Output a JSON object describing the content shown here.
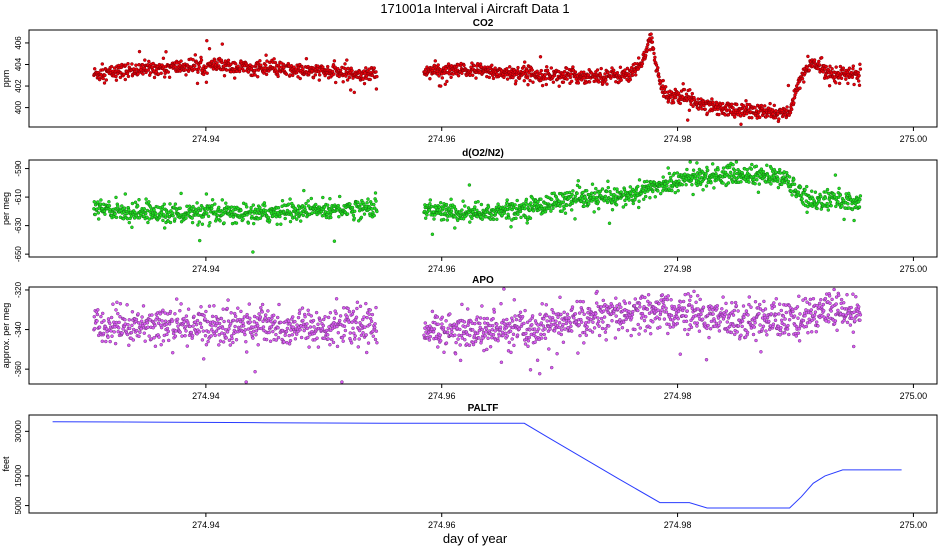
{
  "page": {
    "title": "171001a   Interval i Aircraft Data 1",
    "xlabel": "day of year"
  },
  "chart_data": [
    {
      "type": "scatter",
      "title": "CO2",
      "ylabel": "ppm",
      "color": "#e8000b",
      "xlim": [
        274.925,
        275.002
      ],
      "ylim": [
        398.2,
        407.2
      ],
      "xticks": [
        274.94,
        274.96,
        274.98,
        275.0
      ],
      "xtick_labels": [
        "274.94",
        "274.96",
        "274.98",
        "275.00"
      ],
      "yticks": [
        400,
        402,
        404,
        406
      ],
      "ytick_labels": [
        "400",
        "402",
        "404",
        "406"
      ],
      "segments": [
        {
          "x": [
            274.9305,
            274.935,
            274.94,
            274.945,
            274.95,
            274.9545
          ],
          "y": [
            403.1,
            403.6,
            403.9,
            403.6,
            403.3,
            403.1
          ],
          "noise": 0.35,
          "n": 640
        },
        {
          "x": [
            274.9585,
            274.963,
            274.968,
            274.972,
            274.9755,
            274.977,
            274.9777,
            274.9784,
            274.979,
            274.981,
            274.984,
            274.987,
            274.9895,
            274.99,
            274.9905,
            274.9915,
            274.993,
            274.9955
          ],
          "y": [
            403.4,
            403.4,
            403.1,
            402.9,
            403.0,
            404.0,
            406.8,
            402.5,
            401.3,
            400.8,
            399.9,
            399.6,
            399.4,
            401.5,
            402.8,
            404.2,
            403.2,
            403.0
          ],
          "noise": 0.35,
          "n": 1050
        }
      ]
    },
    {
      "type": "scatter",
      "title": "d(O2/N2)",
      "ylabel": "per meg",
      "color": "#22dd22",
      "xlim": [
        274.925,
        275.002
      ],
      "ylim": [
        -652,
        -584
      ],
      "xticks": [
        274.94,
        274.96,
        274.98,
        275.0
      ],
      "xtick_labels": [
        "274.94",
        "274.96",
        "274.98",
        "275.00"
      ],
      "yticks": [
        -650,
        -630,
        -610,
        -590
      ],
      "ytick_labels": [
        "-650",
        "-630",
        "-610",
        "-590"
      ],
      "segments": [
        {
          "x": [
            274.9305,
            274.935,
            274.94,
            274.945,
            274.95,
            274.9545
          ],
          "y": [
            -618,
            -621,
            -622,
            -621,
            -619,
            -617
          ],
          "noise": 3.5,
          "n": 640
        },
        {
          "x": [
            274.9585,
            274.963,
            274.967,
            274.97,
            274.973,
            274.976,
            274.978,
            274.981,
            274.984,
            274.987,
            274.989,
            274.99,
            274.9915,
            274.993,
            274.9955
          ],
          "y": [
            -619,
            -622,
            -618,
            -613,
            -611,
            -609,
            -603,
            -597,
            -594,
            -595,
            -597,
            -605,
            -613,
            -612,
            -614
          ],
          "noise": 3.5,
          "n": 1050
        }
      ]
    },
    {
      "type": "scatter",
      "title": "APO",
      "ylabel": "approx. per meg",
      "color": "#d85cf2",
      "xlim": [
        274.925,
        275.002
      ],
      "ylim": [
        -367.5,
        -318.5
      ],
      "xticks": [
        274.94,
        274.96,
        274.98,
        275.0
      ],
      "xtick_labels": [
        "274.94",
        "274.96",
        "274.98",
        "275.00"
      ],
      "yticks": [
        -360,
        -340,
        -320
      ],
      "ytick_labels": [
        "-360",
        "-340",
        "-320"
      ],
      "segments": [
        {
          "x": [
            274.9305,
            274.935,
            274.94,
            274.945,
            274.95,
            274.9545
          ],
          "y": [
            -339,
            -338,
            -338,
            -338,
            -339,
            -338
          ],
          "noise": 4.8,
          "n": 640
        },
        {
          "x": [
            274.9585,
            274.963,
            274.967,
            274.97,
            274.973,
            274.976,
            274.979,
            274.982,
            274.985,
            274.988,
            274.99,
            274.992,
            274.9955
          ],
          "y": [
            -340,
            -341,
            -340,
            -337,
            -334,
            -333,
            -331,
            -333,
            -335,
            -335,
            -336,
            -330,
            -333
          ],
          "noise": 4.8,
          "n": 1050
        }
      ]
    },
    {
      "type": "line",
      "title": "PALTF",
      "ylabel": "feet",
      "color": "#2a3cff",
      "xlim": [
        274.925,
        275.002
      ],
      "ylim": [
        2500,
        35500
      ],
      "xticks": [
        274.94,
        274.96,
        274.98,
        275.0
      ],
      "xtick_labels": [
        "274.94",
        "274.96",
        "274.98",
        "275.00"
      ],
      "yticks": [
        5000,
        15000,
        30000
      ],
      "ytick_labels": [
        "5000",
        "15000",
        "30000"
      ],
      "series": [
        {
          "x": [
            274.927,
            274.935,
            274.945,
            274.955,
            274.962,
            274.967,
            274.969,
            274.975,
            274.9785,
            274.981,
            274.9825,
            274.985,
            274.9895,
            274.9905,
            274.9915,
            274.9925,
            274.994,
            274.996,
            274.999
          ],
          "y": [
            33200,
            33100,
            32900,
            32700,
            32700,
            32700,
            28000,
            14000,
            6000,
            6000,
            4200,
            4200,
            4200,
            8000,
            12500,
            15000,
            17000,
            17000,
            17000
          ]
        }
      ]
    }
  ]
}
